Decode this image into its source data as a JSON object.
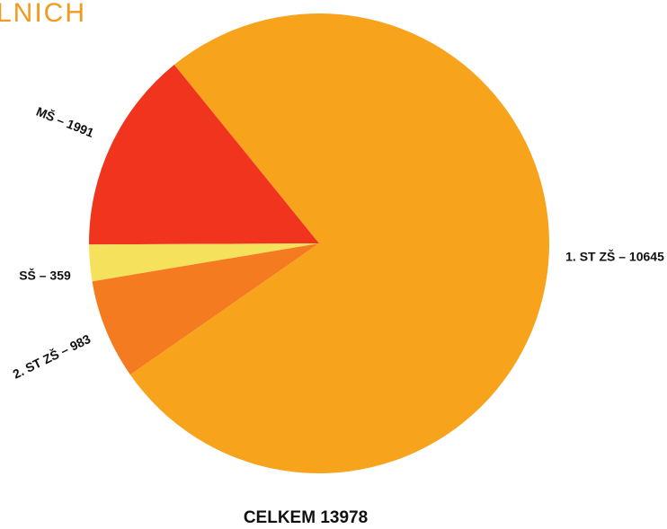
{
  "chart_data": {
    "type": "pie",
    "title": "LNICH",
    "values": [
      1991,
      359,
      983,
      10645
    ],
    "value_labels": [
      "MŠ – 1991",
      "SŠ – 359",
      "2. ST ZŠ – 983",
      "1. ST ZŠ – 10645"
    ],
    "colors": [
      "#f0341d",
      "#f6e15c",
      "#f47b1f",
      "#f7a31c"
    ],
    "annotation": "CELKEM 13978"
  }
}
